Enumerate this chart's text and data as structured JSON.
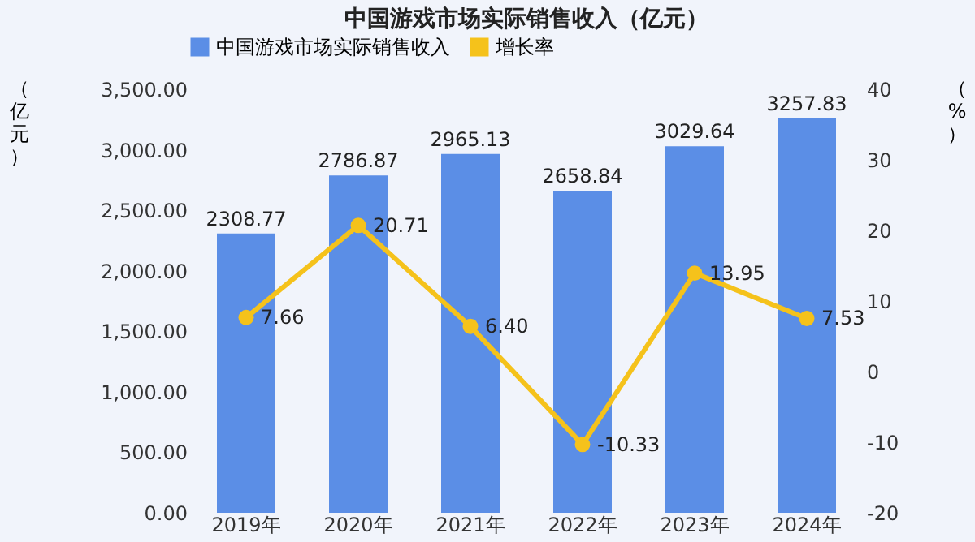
{
  "chart_data": {
    "type": "bar",
    "title": "中国游戏市场实际销售收入（亿元）",
    "categories": [
      "2019年",
      "2020年",
      "2021年",
      "2022年",
      "2023年",
      "2024年"
    ],
    "series": [
      {
        "name": "中国游戏市场实际销售收入",
        "color": "#5b8ee6",
        "values": [
          2308.77,
          2786.87,
          2965.13,
          2658.84,
          3029.64,
          3257.83
        ],
        "value_labels": [
          "2308.77",
          "2786.87",
          "2965.13",
          "2658.84",
          "3029.64",
          "3257.83"
        ]
      },
      {
        "name": "增长率",
        "type": "line",
        "axis": "y2",
        "color": "#f5c21b",
        "marker": "circle",
        "values": [
          7.66,
          20.71,
          6.4,
          -10.33,
          13.95,
          7.53
        ],
        "value_labels": [
          "7.66",
          "20.71",
          "6.40",
          "-10.33",
          "13.95",
          "7.53"
        ]
      }
    ],
    "ylabel": "（亿元）",
    "y2label": "（%）",
    "ylim": [
      0,
      3500
    ],
    "yticks": [
      {
        "value": 0,
        "label": "0.00"
      },
      {
        "value": 500,
        "label": "500.00"
      },
      {
        "value": 1000,
        "label": "1,000.00"
      },
      {
        "value": 1500,
        "label": "1,500.00"
      },
      {
        "value": 2000,
        "label": "2,000.00"
      },
      {
        "value": 2500,
        "label": "2,500.00"
      },
      {
        "value": 3000,
        "label": "3,000.00"
      },
      {
        "value": 3500,
        "label": "3,500.00"
      }
    ],
    "y2lim": [
      -20,
      40
    ],
    "y2ticks": [
      -20,
      -10,
      0,
      10,
      20,
      30,
      40
    ],
    "legend": "top"
  }
}
